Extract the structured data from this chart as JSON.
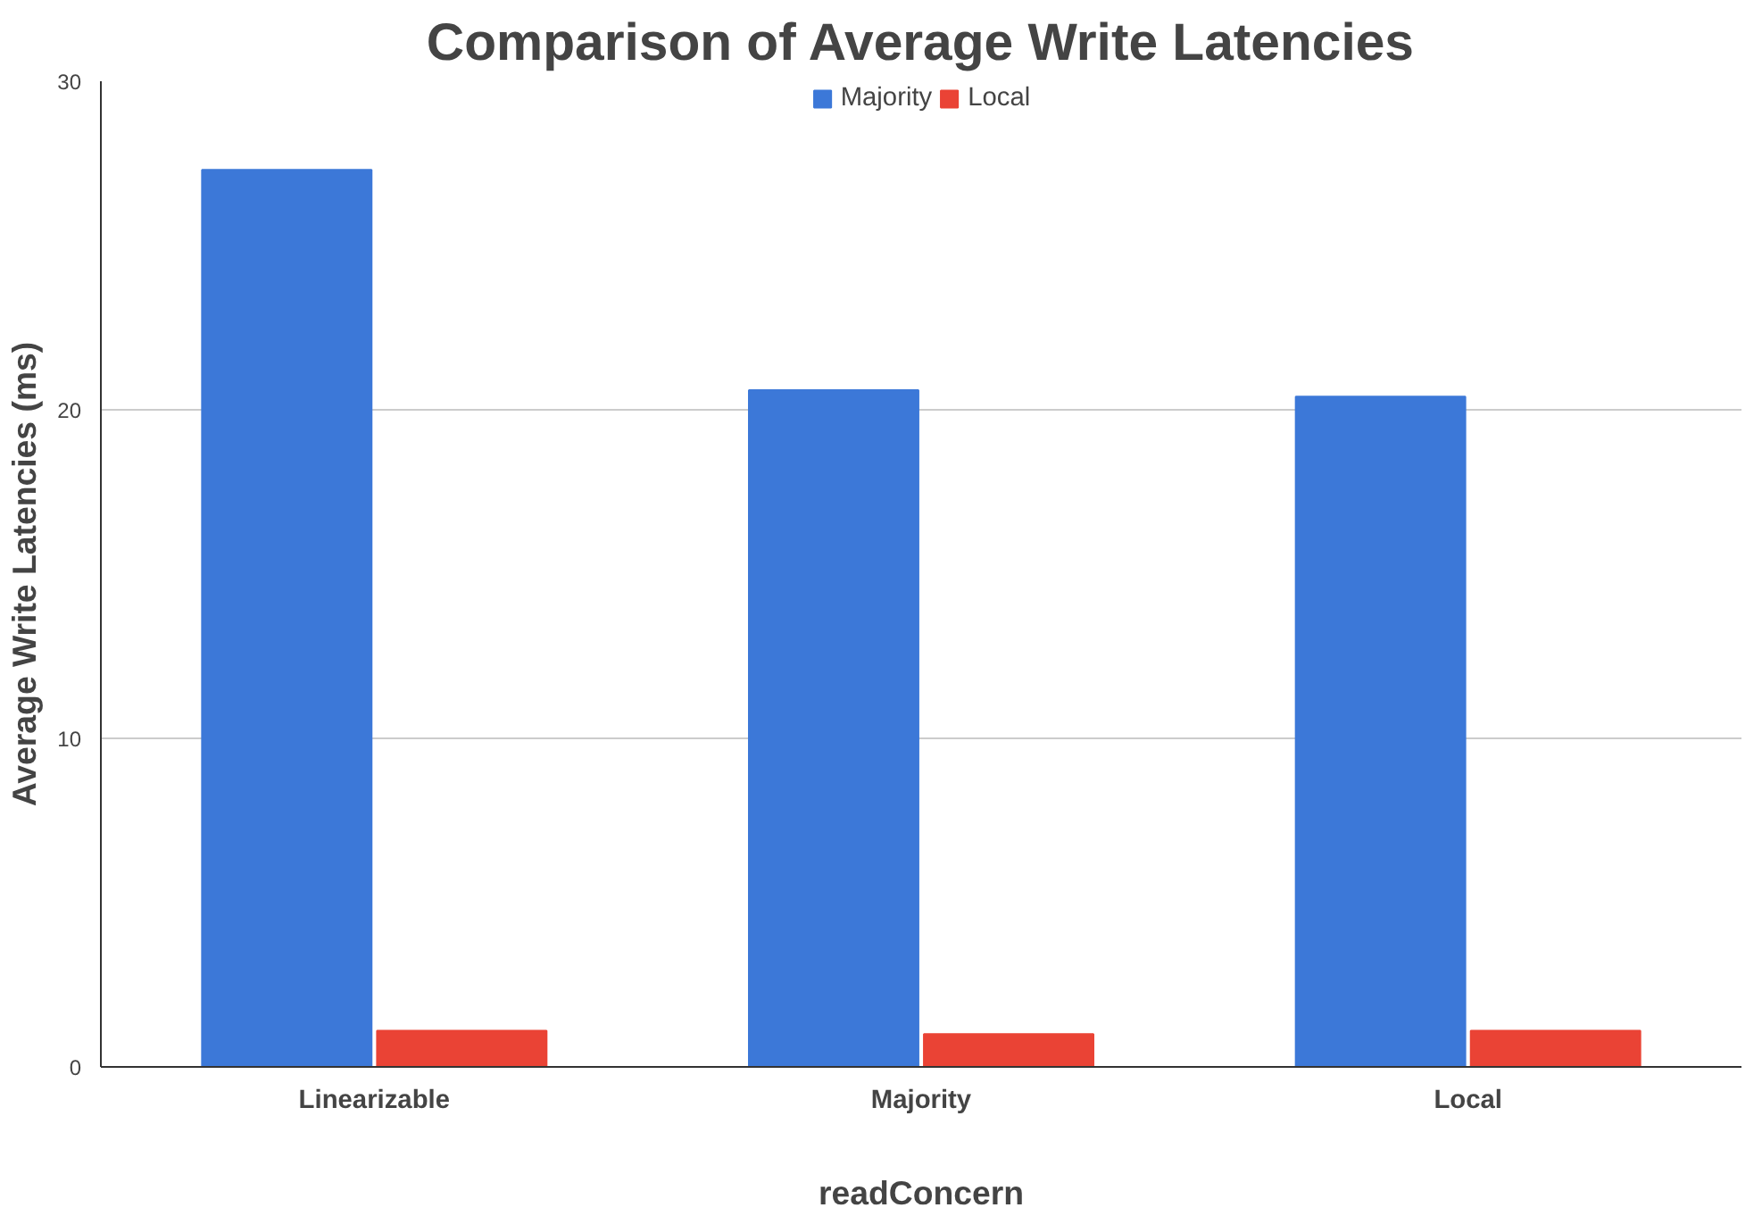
{
  "chart_data": {
    "type": "bar",
    "title": "Comparison of Average Write Latencies",
    "xlabel": "readConcern",
    "ylabel": "Average Write Latencies (ms)",
    "categories": [
      "Linearizable",
      "Majority",
      "Local"
    ],
    "series": [
      {
        "name": "Majority",
        "color": "#3c78d8",
        "values": [
          27.3,
          20.6,
          20.4
        ]
      },
      {
        "name": "Local",
        "color": "#ea4335",
        "values": [
          1.1,
          1.0,
          1.1
        ]
      }
    ],
    "ylim": [
      0,
      30
    ],
    "yticks": [
      0,
      10,
      20,
      30
    ],
    "grid": "y",
    "legend": "top"
  }
}
